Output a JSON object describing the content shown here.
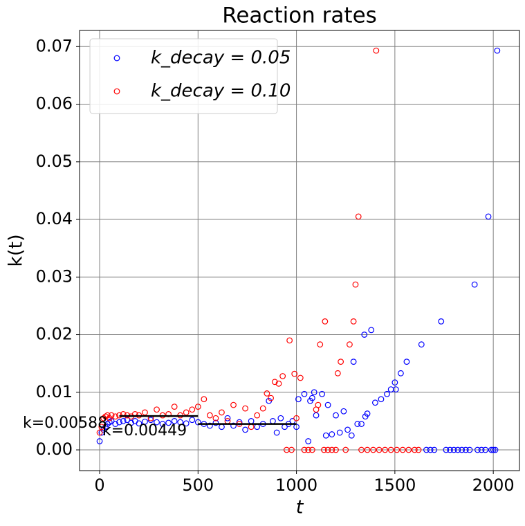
{
  "chart_data": {
    "type": "scatter",
    "title": "Reaction rates",
    "x_label": "t",
    "y_label": "k(t)",
    "xlim": [
      -102,
      2133
    ],
    "ylim": [
      -0.0036,
      0.0728
    ],
    "xticks": [
      0,
      500,
      1000,
      1500,
      2000
    ],
    "yticks": [
      {
        "value": 0,
        "label": "0.00"
      },
      {
        "value": 0.01,
        "label": "0.01"
      },
      {
        "value": 0.02,
        "label": "0.02"
      },
      {
        "value": 0.03,
        "label": "0.03"
      },
      {
        "value": 0.04,
        "label": "0.04"
      },
      {
        "value": 0.05,
        "label": "0.05"
      },
      {
        "value": 0.06,
        "label": "0.06"
      },
      {
        "value": 0.07,
        "label": "0.07"
      }
    ],
    "grid": true,
    "legend": "upper left",
    "series": [
      {
        "name": "k_decay = 0.05",
        "color": "#0000ff",
        "x": [
          0,
          10,
          20,
          30,
          40,
          50,
          60,
          80,
          100,
          120,
          140,
          160,
          180,
          200,
          230,
          260,
          290,
          320,
          350,
          380,
          410,
          440,
          470,
          500,
          530,
          560,
          590,
          620,
          650,
          680,
          710,
          740,
          770,
          800,
          830,
          860,
          880,
          900,
          920,
          940,
          960,
          980,
          1000,
          1010,
          1040,
          1060,
          1070,
          1080,
          1090,
          1100,
          1130,
          1150,
          1160,
          1180,
          1200,
          1220,
          1240,
          1260,
          1280,
          1290,
          1310,
          1330,
          1345,
          1350,
          1360,
          1380,
          1400,
          1430,
          1460,
          1480,
          1500,
          1505,
          1530,
          1560,
          1635,
          1660,
          1680,
          1700,
          1735,
          1760,
          1780,
          1800,
          1820,
          1840,
          1860,
          1880,
          1905,
          1920,
          1940,
          1960,
          1975,
          1990,
          2000,
          2010,
          2020
        ],
        "values": [
          0.0015,
          0.003,
          0.0035,
          0.004,
          0.0045,
          0.0048,
          0.005,
          0.0045,
          0.0048,
          0.005,
          0.0052,
          0.0047,
          0.005,
          0.0046,
          0.0049,
          0.0052,
          0.0048,
          0.0045,
          0.0047,
          0.005,
          0.0048,
          0.0046,
          0.0052,
          0.0048,
          0.0045,
          0.0042,
          0.0047,
          0.004,
          0.0055,
          0.0042,
          0.0048,
          0.0035,
          0.005,
          0.004,
          0.0045,
          0.0085,
          0.005,
          0.003,
          0.0055,
          0.004,
          0.0045,
          0.005,
          0.004,
          0.0088,
          0.0097,
          0.0015,
          0.0085,
          0.009,
          0.01,
          0.006,
          0.0097,
          0.0025,
          0.0078,
          0.0027,
          0.006,
          0.003,
          0.0067,
          0.0035,
          0.0025,
          0.0153,
          0.0045,
          0.0045,
          0.02,
          0.0058,
          0.0063,
          0.0208,
          0.0082,
          0.0088,
          0.0097,
          0.0105,
          0.0117,
          0.0105,
          0.0133,
          0.0153,
          0.0183,
          0,
          0,
          0,
          0.0223,
          0,
          0,
          0,
          0,
          0,
          0,
          0,
          0.0287,
          0,
          0,
          0,
          0.0405,
          0,
          0,
          0,
          0.0693
        ]
      },
      {
        "name": "k_decay = 0.10",
        "color": "#ff0000",
        "x": [
          0,
          10,
          20,
          30,
          40,
          50,
          60,
          80,
          100,
          120,
          140,
          160,
          180,
          200,
          230,
          260,
          290,
          320,
          350,
          380,
          410,
          440,
          470,
          500,
          530,
          560,
          590,
          620,
          650,
          680,
          710,
          740,
          770,
          800,
          830,
          850,
          870,
          890,
          910,
          930,
          950,
          965,
          975,
          990,
          1000,
          1020,
          1040,
          1060,
          1080,
          1100,
          1110,
          1120,
          1140,
          1145,
          1160,
          1180,
          1200,
          1210,
          1225,
          1250,
          1270,
          1290,
          1300,
          1315,
          1330,
          1360,
          1390,
          1405,
          1420,
          1450,
          1480,
          1510,
          1540,
          1570,
          1600,
          1620
        ],
        "values": [
          0.003,
          0.004,
          0.0055,
          0.0058,
          0.006,
          0.0055,
          0.006,
          0.0058,
          0.006,
          0.0062,
          0.006,
          0.0058,
          0.0062,
          0.006,
          0.0065,
          0.0055,
          0.007,
          0.006,
          0.0062,
          0.0075,
          0.006,
          0.0065,
          0.007,
          0.0075,
          0.0088,
          0.006,
          0.0055,
          0.0065,
          0.005,
          0.0078,
          0.0045,
          0.0072,
          0.004,
          0.006,
          0.0072,
          0.0098,
          0.009,
          0.0118,
          0.0115,
          0.0128,
          0,
          0.019,
          0,
          0.0132,
          0.0055,
          0.0125,
          0,
          0,
          0,
          0.007,
          0.0078,
          0.0183,
          0,
          0.0223,
          0,
          0,
          0,
          0.0133,
          0.0153,
          0,
          0.0183,
          0.0223,
          0.0287,
          0.0405,
          0,
          0,
          0,
          0.0693,
          0,
          0,
          0,
          0,
          0,
          0,
          0,
          0
        ]
      }
    ],
    "fits": [
      {
        "x": [
          100,
          500
        ],
        "value": 0.00588,
        "label": "k=0.00588"
      },
      {
        "x": [
          500,
          1000
        ],
        "value": 0.00449,
        "label": "k=0.00449"
      }
    ]
  }
}
